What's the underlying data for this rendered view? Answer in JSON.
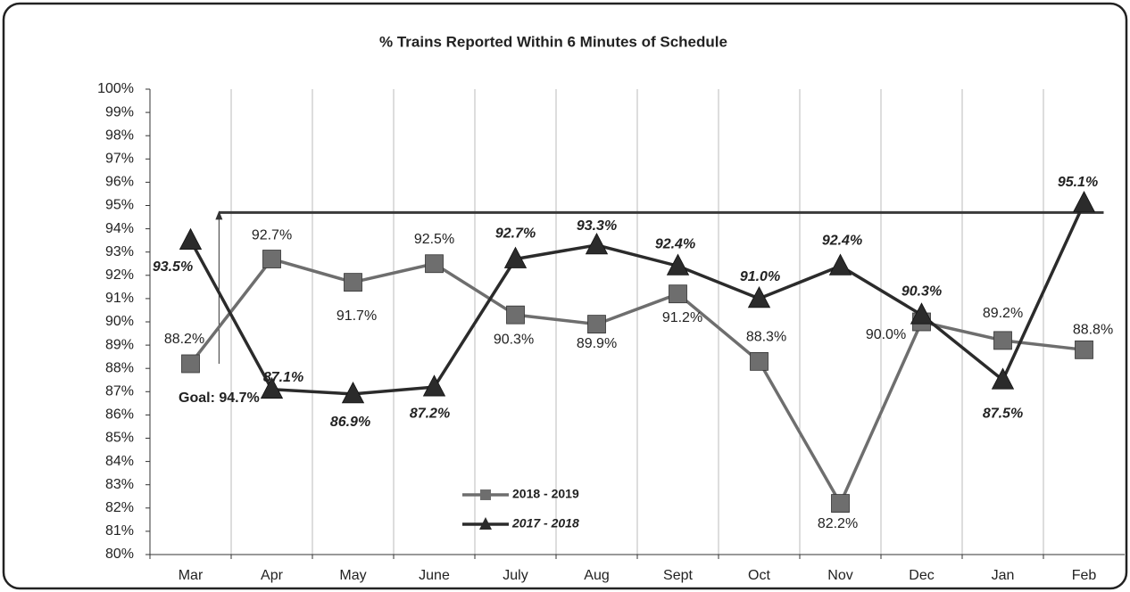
{
  "chart_data": {
    "type": "line",
    "title": "% Trains Reported Within 6 Minutes of Schedule",
    "categories": [
      "Mar",
      "Apr",
      "May",
      "June",
      "July",
      "Aug",
      "Sept",
      "Oct",
      "Nov",
      "Dec",
      "Jan",
      "Feb"
    ],
    "series": [
      {
        "name": "2018 - 2019",
        "color": "#6e6e6e",
        "marker": "square",
        "values": [
          88.2,
          92.7,
          91.7,
          92.5,
          90.3,
          89.9,
          91.2,
          88.3,
          82.2,
          90.0,
          89.2,
          88.8
        ],
        "value_labels": [
          "88.2%",
          "92.7%",
          "91.7%",
          "92.5%",
          "90.3%",
          "89.9%",
          "91.2%",
          "88.3%",
          "82.2%",
          "90.0%",
          "89.2%",
          "88.8%"
        ]
      },
      {
        "name": "2017 - 2018",
        "color": "#2b2b2b",
        "marker": "triangle",
        "values": [
          93.5,
          87.1,
          86.9,
          87.2,
          92.7,
          93.3,
          92.4,
          91.0,
          92.4,
          90.3,
          87.5,
          95.1
        ],
        "value_labels": [
          "93.5%",
          "87.1%",
          "86.9%",
          "87.2%",
          "92.7%",
          "93.3%",
          "92.4%",
          "91.0%",
          "92.4%",
          "90.3%",
          "87.5%",
          "95.1%"
        ]
      }
    ],
    "goal": {
      "value": 94.7,
      "label": "Goal: 94.7%",
      "color": "#3a3a3a"
    },
    "ylim": [
      80,
      100
    ],
    "yticks": [
      {
        "value": 80,
        "label": "80%"
      },
      {
        "value": 81,
        "label": "81%"
      },
      {
        "value": 82,
        "label": "82%"
      },
      {
        "value": 83,
        "label": "83%"
      },
      {
        "value": 84,
        "label": "84%"
      },
      {
        "value": 85,
        "label": "85%"
      },
      {
        "value": 86,
        "label": "86%"
      },
      {
        "value": 87,
        "label": "87%"
      },
      {
        "value": 88,
        "label": "88%"
      },
      {
        "value": 89,
        "label": "89%"
      },
      {
        "value": 90,
        "label": "90%"
      },
      {
        "value": 91,
        "label": "91%"
      },
      {
        "value": 92,
        "label": "92%"
      },
      {
        "value": 93,
        "label": "93%"
      },
      {
        "value": 94,
        "label": "94%"
      },
      {
        "value": 95,
        "label": "95%"
      },
      {
        "value": 96,
        "label": "96%"
      },
      {
        "value": 97,
        "label": "97%"
      },
      {
        "value": 98,
        "label": "98%"
      },
      {
        "value": 99,
        "label": "99%"
      },
      {
        "value": 100,
        "label": "100%"
      }
    ],
    "grid": "vertical",
    "legend": "bottom-center"
  }
}
